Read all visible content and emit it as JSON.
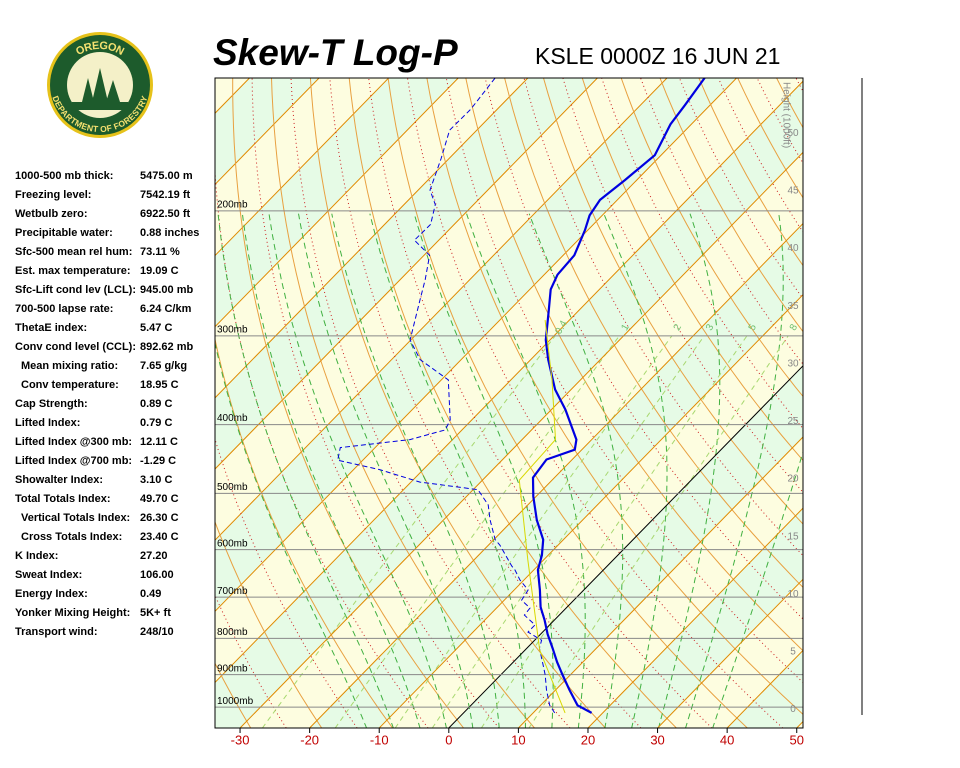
{
  "logo": {
    "top": "OREGON",
    "bottom": "DEPARTMENT OF FORESTRY"
  },
  "stats": [
    {
      "label": "1000-500 mb thick:",
      "value": "5475.00 m"
    },
    {
      "label": "Freezing level:",
      "value": "7542.19 ft"
    },
    {
      "label": "Wetbulb zero:",
      "value": "6922.50 ft"
    },
    {
      "label": "Precipitable water:",
      "value": "0.88 inches"
    },
    {
      "label": "Sfc-500 mean rel hum:",
      "value": "73.11 %"
    },
    {
      "label": "Est. max temperature:",
      "value": "19.09 C"
    },
    {
      "label": "Sfc-Lift cond lev (LCL):",
      "value": "945.00 mb"
    },
    {
      "label": "700-500 lapse rate:",
      "value": "6.24 C/km"
    },
    {
      "label": "ThetaE index:",
      "value": "5.47 C"
    },
    {
      "label": "Conv cond level (CCL):",
      "value": "892.62 mb"
    },
    {
      "label": "Mean mixing ratio:",
      "value": "7.65 g/kg",
      "indented": true
    },
    {
      "label": "Conv temperature:",
      "value": "18.95 C",
      "indented": true
    },
    {
      "label": "Cap Strength:",
      "value": "0.89 C"
    },
    {
      "label": "Lifted Index:",
      "value": "0.79 C"
    },
    {
      "label": "Lifted Index @300 mb:",
      "value": "12.11 C"
    },
    {
      "label": "Lifted Index @700 mb:",
      "value": "-1.29 C"
    },
    {
      "label": "Showalter Index:",
      "value": "3.10 C"
    },
    {
      "label": "Total Totals Index:",
      "value": "49.70 C"
    },
    {
      "label": "Vertical Totals Index:",
      "value": "26.30 C",
      "indented": true
    },
    {
      "label": "Cross Totals Index:",
      "value": "23.40 C",
      "indented": true
    },
    {
      "label": "K Index:",
      "value": "27.20"
    },
    {
      "label": "Sweat Index:",
      "value": "106.00"
    },
    {
      "label": "Energy Index:",
      "value": "0.49"
    },
    {
      "label": "Yonker Mixing Height:",
      "value": "5K+ ft"
    },
    {
      "label": "Transport wind:",
      "value": "248/10"
    }
  ],
  "chart_data": {
    "type": "skewt",
    "title": "Skew-T Log-P",
    "subtitle": "KSLE 0000Z 16 JUN 21",
    "xlim": [
      -33.6,
      50.9
    ],
    "xticks": [
      -30,
      -20,
      -10,
      0,
      10,
      20,
      30,
      40,
      50
    ],
    "ylim": [
      1070,
      130
    ],
    "log_y": true,
    "yticks": [
      {
        "value": 200,
        "label": "200mb"
      },
      {
        "value": 300,
        "label": "300mb"
      },
      {
        "value": 400,
        "label": "400mb"
      },
      {
        "value": 500,
        "label": "500mb"
      },
      {
        "value": 600,
        "label": "600mb"
      },
      {
        "value": 700,
        "label": "700mb"
      },
      {
        "value": 800,
        "label": "800mb"
      },
      {
        "value": 900,
        "label": "900mb"
      },
      {
        "value": 1000,
        "label": "1000mb"
      }
    ],
    "height_label": "Height (1000ft)",
    "height_lim": [
      -1.6,
      54.8
    ],
    "height_ticks": [
      0,
      5,
      10,
      15,
      20,
      25,
      30,
      35,
      40,
      45,
      50
    ],
    "mixing_ratios": [
      0.4,
      1,
      2,
      3,
      5,
      8
    ],
    "series": [
      {
        "color": "#0000e0",
        "style": "solid",
        "pressure": [
          1019,
          994,
          946,
          901,
          864,
          826,
          789,
          754,
          723,
          684,
          641,
          611,
          581,
          545,
          505,
          475,
          448,
          434,
          420,
          381,
          357,
          324,
          304,
          275,
          258,
          246,
          231,
          213,
          203,
          193,
          181,
          167,
          151,
          142,
          130
        ],
        "values": [
          18.4,
          15.3,
          12.0,
          8.9,
          6.3,
          3.7,
          1.0,
          -1.4,
          -3.8,
          -6.3,
          -9.4,
          -10.9,
          -12.9,
          -16.6,
          -20.4,
          -23.1,
          -23.7,
          -21.0,
          -22.2,
          -28.0,
          -32.3,
          -37.5,
          -40.6,
          -44.5,
          -47.0,
          -48.1,
          -48.4,
          -50.4,
          -51.8,
          -52.5,
          -51.7,
          -50.9,
          -53.0,
          -53.6,
          -54.6
        ]
      },
      {
        "color": "#0000e0",
        "style": "dashed",
        "pressure": [
          1019,
          994,
          946,
          901,
          864,
          826,
          805,
          784,
          766,
          742,
          725,
          707,
          684,
          662,
          641,
          633,
          591,
          581,
          545,
          519,
          494,
          490,
          482,
          463,
          449,
          431,
          420,
          407,
          394,
          346,
          324,
          304,
          285,
          267,
          250,
          231,
          220,
          209,
          196,
          187,
          169,
          154,
          144,
          130
        ],
        "values": [
          13.1,
          11.3,
          8.7,
          6.4,
          4.2,
          1.8,
          1.0,
          -2.1,
          -2.1,
          -5.0,
          -5.2,
          -7.5,
          -8.0,
          -10.6,
          -12.7,
          -13.7,
          -18.4,
          -19.8,
          -23.3,
          -25.7,
          -29.3,
          -32.3,
          -38.7,
          -46.2,
          -53.6,
          -55.0,
          -46.1,
          -42.4,
          -43.1,
          -49.0,
          -55.9,
          -60.1,
          -62.2,
          -64.3,
          -66.4,
          -69.2,
          -73.5,
          -73.4,
          -75.5,
          -78.3,
          -81.1,
          -83.9,
          -83.8,
          -84.7
        ]
      },
      {
        "color": "#d8d800",
        "style": "thin",
        "pressure": [
          1019,
          831,
          620,
          479,
          420,
          346,
          285
        ],
        "values": [
          14.6,
          2.1,
          -12.3,
          -24.7,
          -25.2,
          -34.1,
          -43.5
        ]
      }
    ]
  }
}
